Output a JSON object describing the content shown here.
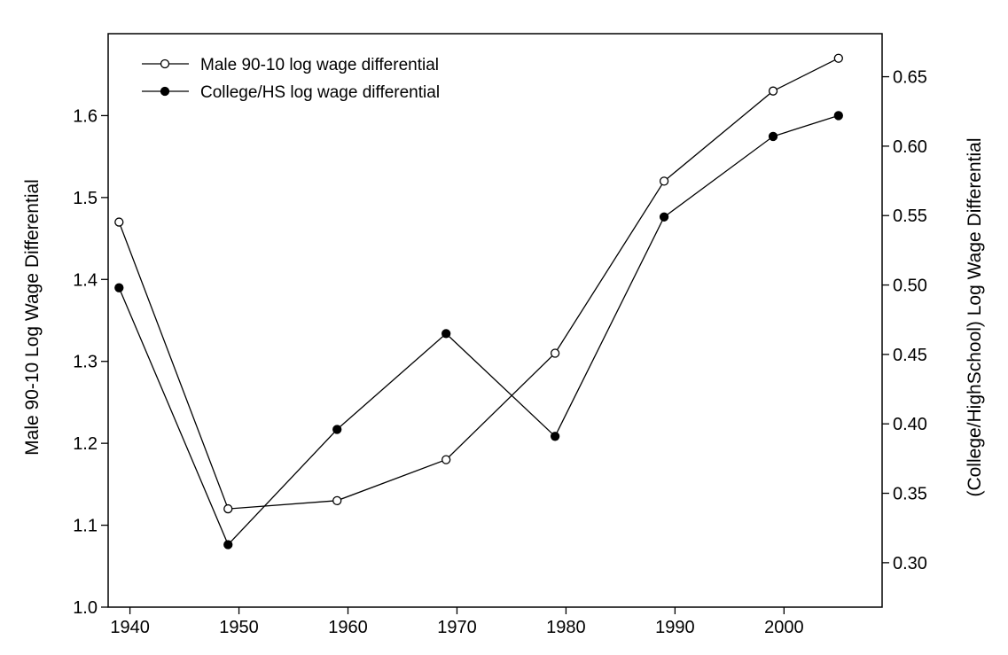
{
  "chart_data": {
    "type": "line",
    "x": [
      1939,
      1949,
      1959,
      1969,
      1979,
      1989,
      1999,
      2005
    ],
    "xlim": [
      1938,
      2009
    ],
    "xticks": [
      1940,
      1950,
      1960,
      1970,
      1980,
      1990,
      2000
    ],
    "ylabel_left": "Male 90-10 Log Wage Differential",
    "ylabel_right": "(College/HighSchool) Log Wage Differential",
    "ylim_left": [
      1.0,
      1.7
    ],
    "yticks_left": [
      "1.0",
      "1.1",
      "1.2",
      "1.3",
      "1.4",
      "1.5",
      "1.6"
    ],
    "ylim_right": [
      0.268,
      0.681
    ],
    "yticks_right": [
      "0.30",
      "0.35",
      "0.40",
      "0.45",
      "0.50",
      "0.55",
      "0.60",
      "0.65"
    ],
    "grid": false,
    "legend_position": "top-left",
    "series": [
      {
        "name": "Male 90-10 log wage differential",
        "axis": "left",
        "marker": "open-circle",
        "values": [
          1.47,
          1.12,
          1.13,
          1.18,
          1.31,
          1.52,
          1.63,
          1.67
        ]
      },
      {
        "name": "College/HS log wage differential",
        "axis": "right",
        "marker": "filled-circle",
        "values": [
          0.498,
          0.313,
          0.396,
          0.465,
          0.391,
          0.549,
          0.607,
          0.622
        ]
      }
    ]
  }
}
